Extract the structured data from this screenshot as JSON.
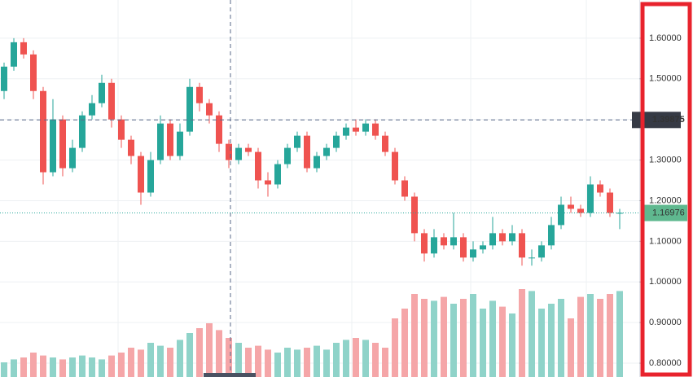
{
  "chart_data": {
    "type": "candlestick",
    "ylim": [
      0.766,
      1.694
    ],
    "yticks": [
      {
        "value": 0.8,
        "label": "0.80000"
      },
      {
        "value": 0.9,
        "label": "0.90000"
      },
      {
        "value": 1.0,
        "label": "1.00000"
      },
      {
        "value": 1.1,
        "label": "1.10000"
      },
      {
        "value": 1.2,
        "label": "1.20000"
      },
      {
        "value": 1.3,
        "label": "1.30000"
      },
      {
        "value": 1.4,
        "label": "1.40000"
      },
      {
        "value": 1.5,
        "label": "1.50000"
      },
      {
        "value": 1.6,
        "label": "1.60000"
      }
    ],
    "grid": true,
    "up_color": "#26a69a",
    "down_color": "#ef5350",
    "up_volume_color": "#8fd3c9",
    "down_volume_color": "#f5a6a8",
    "crosshair": {
      "value": 1.39875,
      "label": "1.39875"
    },
    "last_price": {
      "value": 1.16976,
      "label": "1.16976"
    },
    "candles": [
      [
        1.47,
        1.54,
        1.45,
        1.53
      ],
      [
        1.53,
        1.6,
        1.52,
        1.59
      ],
      [
        1.59,
        1.6,
        1.55,
        1.56
      ],
      [
        1.56,
        1.57,
        1.45,
        1.47
      ],
      [
        1.47,
        1.48,
        1.24,
        1.27
      ],
      [
        1.27,
        1.45,
        1.26,
        1.4
      ],
      [
        1.4,
        1.41,
        1.26,
        1.28
      ],
      [
        1.28,
        1.35,
        1.27,
        1.33
      ],
      [
        1.33,
        1.42,
        1.32,
        1.41
      ],
      [
        1.41,
        1.46,
        1.4,
        1.44
      ],
      [
        1.44,
        1.51,
        1.43,
        1.49
      ],
      [
        1.49,
        1.5,
        1.38,
        1.4
      ],
      [
        1.4,
        1.41,
        1.33,
        1.35
      ],
      [
        1.35,
        1.36,
        1.29,
        1.31
      ],
      [
        1.31,
        1.32,
        1.19,
        1.22
      ],
      [
        1.22,
        1.32,
        1.21,
        1.3
      ],
      [
        1.3,
        1.41,
        1.29,
        1.39
      ],
      [
        1.39,
        1.4,
        1.3,
        1.31
      ],
      [
        1.31,
        1.39,
        1.3,
        1.37
      ],
      [
        1.37,
        1.5,
        1.36,
        1.48
      ],
      [
        1.48,
        1.49,
        1.42,
        1.44
      ],
      [
        1.44,
        1.45,
        1.39,
        1.41
      ],
      [
        1.41,
        1.42,
        1.32,
        1.34
      ],
      [
        1.34,
        1.35,
        1.28,
        1.3
      ],
      [
        1.3,
        1.34,
        1.29,
        1.33
      ],
      [
        1.33,
        1.34,
        1.31,
        1.32
      ],
      [
        1.32,
        1.33,
        1.23,
        1.25
      ],
      [
        1.25,
        1.27,
        1.21,
        1.24
      ],
      [
        1.24,
        1.3,
        1.23,
        1.29
      ],
      [
        1.29,
        1.34,
        1.28,
        1.33
      ],
      [
        1.33,
        1.37,
        1.32,
        1.36
      ],
      [
        1.36,
        1.37,
        1.27,
        1.28
      ],
      [
        1.28,
        1.32,
        1.27,
        1.31
      ],
      [
        1.31,
        1.34,
        1.3,
        1.33
      ],
      [
        1.33,
        1.37,
        1.32,
        1.36
      ],
      [
        1.36,
        1.39,
        1.35,
        1.38
      ],
      [
        1.38,
        1.4,
        1.36,
        1.37
      ],
      [
        1.37,
        1.4,
        1.36,
        1.39
      ],
      [
        1.39,
        1.4,
        1.35,
        1.36
      ],
      [
        1.36,
        1.37,
        1.31,
        1.32
      ],
      [
        1.32,
        1.33,
        1.24,
        1.25
      ],
      [
        1.25,
        1.26,
        1.2,
        1.21
      ],
      [
        1.21,
        1.22,
        1.1,
        1.12
      ],
      [
        1.12,
        1.13,
        1.05,
        1.07
      ],
      [
        1.07,
        1.13,
        1.06,
        1.11
      ],
      [
        1.11,
        1.12,
        1.08,
        1.09
      ],
      [
        1.09,
        1.17,
        1.08,
        1.11
      ],
      [
        1.11,
        1.12,
        1.05,
        1.06
      ],
      [
        1.06,
        1.1,
        1.05,
        1.08
      ],
      [
        1.08,
        1.1,
        1.07,
        1.09
      ],
      [
        1.09,
        1.16,
        1.08,
        1.12
      ],
      [
        1.12,
        1.13,
        1.09,
        1.1
      ],
      [
        1.1,
        1.14,
        1.09,
        1.12
      ],
      [
        1.12,
        1.13,
        1.04,
        1.06
      ],
      [
        1.06,
        1.08,
        1.04,
        1.06
      ],
      [
        1.06,
        1.1,
        1.05,
        1.09
      ],
      [
        1.09,
        1.16,
        1.08,
        1.14
      ],
      [
        1.14,
        1.21,
        1.13,
        1.19
      ],
      [
        1.19,
        1.21,
        1.17,
        1.18
      ],
      [
        1.18,
        1.19,
        1.16,
        1.17
      ],
      [
        1.17,
        1.26,
        1.16,
        1.24
      ],
      [
        1.24,
        1.25,
        1.21,
        1.22
      ],
      [
        1.22,
        1.23,
        1.16,
        1.17
      ],
      [
        1.17,
        1.18,
        1.13,
        1.17
      ]
    ],
    "volumes": [
      15,
      18,
      20,
      25,
      22,
      20,
      18,
      20,
      22,
      20,
      18,
      22,
      25,
      30,
      28,
      35,
      32,
      30,
      38,
      45,
      50,
      55,
      48,
      40,
      35,
      30,
      32,
      28,
      25,
      30,
      28,
      30,
      32,
      28,
      35,
      38,
      40,
      38,
      35,
      30,
      60,
      70,
      85,
      80,
      78,
      82,
      75,
      80,
      85,
      70,
      78,
      72,
      65,
      90,
      88,
      70,
      75,
      80,
      60,
      82,
      85,
      80,
      85,
      88
    ]
  }
}
